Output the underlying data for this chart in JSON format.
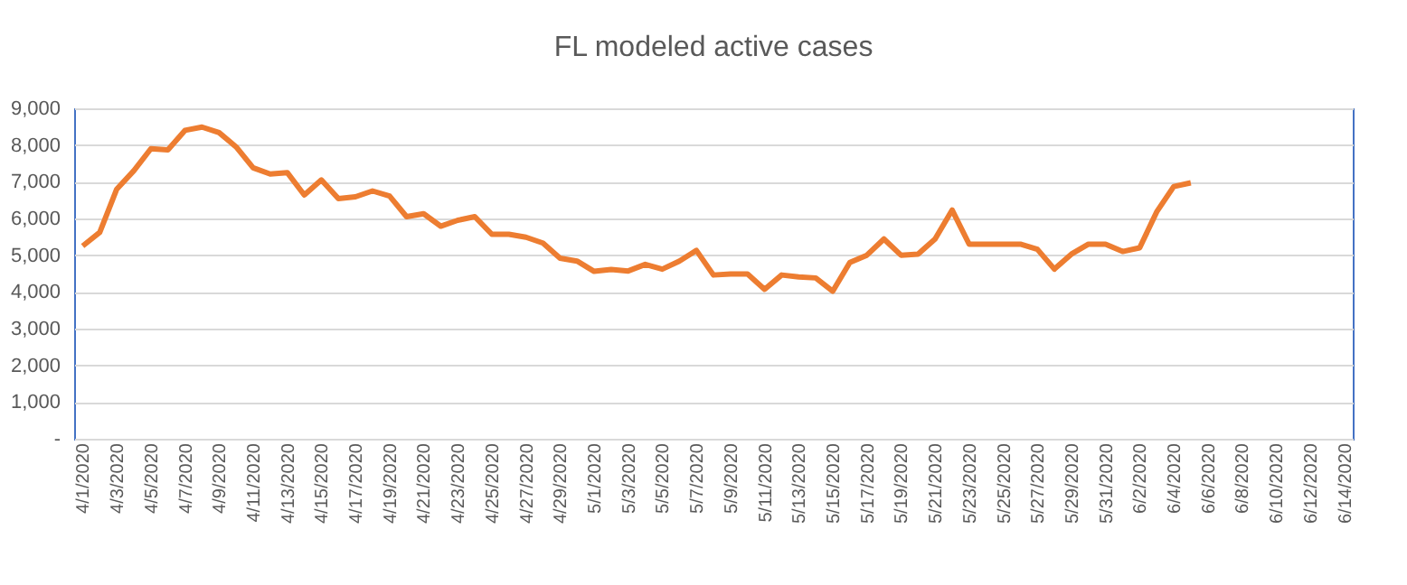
{
  "chart_data": {
    "type": "line",
    "title": "FL modeled active cases",
    "categories": [
      "4/1/2020",
      null,
      "4/3/2020",
      null,
      "4/5/2020",
      null,
      "4/7/2020",
      null,
      "4/9/2020",
      null,
      "4/11/2020",
      null,
      "4/13/2020",
      null,
      "4/15/2020",
      null,
      "4/17/2020",
      null,
      "4/19/2020",
      null,
      "4/21/2020",
      null,
      "4/23/2020",
      null,
      "4/25/2020",
      null,
      "4/27/2020",
      null,
      "4/29/2020",
      null,
      "5/1/2020",
      null,
      "5/3/2020",
      null,
      "5/5/2020",
      null,
      "5/7/2020",
      null,
      "5/9/2020",
      null,
      "5/11/2020",
      null,
      "5/13/2020",
      null,
      "5/15/2020",
      null,
      "5/17/2020",
      null,
      "5/19/2020",
      null,
      "5/21/2020",
      null,
      "5/23/2020",
      null,
      "5/25/2020",
      null,
      "5/27/2020",
      null,
      "5/29/2020",
      null,
      "5/31/2020",
      null,
      "6/2/2020",
      null,
      "6/4/2020",
      null,
      "6/6/2020",
      null,
      "6/8/2020",
      null,
      "6/10/2020",
      null,
      "6/12/2020",
      null,
      "6/14/2020"
    ],
    "series": [
      {
        "color": "#ed7d31",
        "values": [
          5250,
          5620,
          6800,
          7300,
          7900,
          7870,
          8400,
          8490,
          8340,
          7950,
          7380,
          7210,
          7250,
          6640,
          7050,
          6540,
          6590,
          6750,
          6610,
          6050,
          6130,
          5790,
          5950,
          6050,
          5570,
          5570,
          5490,
          5330,
          4920,
          4840,
          4560,
          4610,
          4570,
          4750,
          4620,
          4840,
          5130,
          4460,
          4490,
          4490,
          4070,
          4460,
          4410,
          4380,
          4020,
          4800,
          5000,
          5440,
          5000,
          5030,
          5440,
          6230,
          5300,
          5300,
          5300,
          5300,
          5160,
          4620,
          5030,
          5300,
          5300,
          5100,
          5200,
          6180,
          6870,
          6970,
          null,
          null,
          null,
          null,
          null,
          null,
          null,
          null,
          null
        ]
      }
    ],
    "ylim": [
      0,
      9000
    ],
    "yticks": [
      {
        "value": 0,
        "label": "-"
      },
      {
        "value": 1000,
        "label": "1,000"
      },
      {
        "value": 2000,
        "label": "2,000"
      },
      {
        "value": 3000,
        "label": "3,000"
      },
      {
        "value": 4000,
        "label": "4,000"
      },
      {
        "value": 5000,
        "label": "5,000"
      },
      {
        "value": 6000,
        "label": "6,000"
      },
      {
        "value": 7000,
        "label": "7,000"
      },
      {
        "value": 8000,
        "label": "8,000"
      },
      {
        "value": 9000,
        "label": "9,000"
      }
    ],
    "grid": "y",
    "marker": "none",
    "line_style": "solid"
  }
}
